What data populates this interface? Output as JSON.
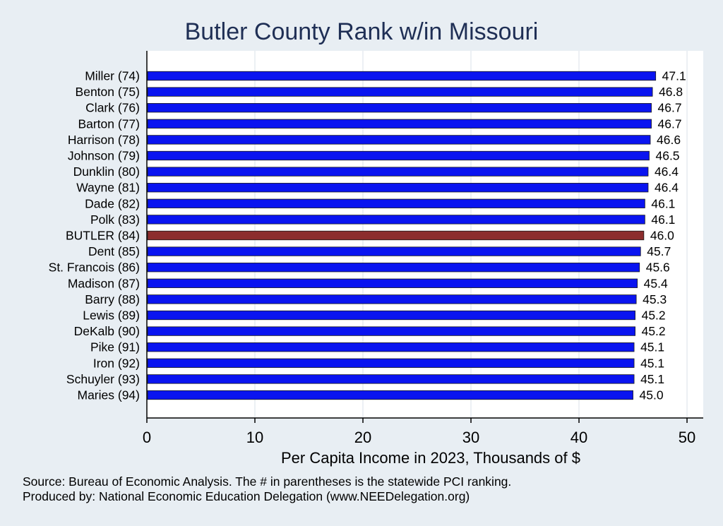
{
  "chart_data": {
    "type": "bar",
    "orientation": "horizontal",
    "title": "Butler County Rank w/in Missouri",
    "xlabel": "Per Capita Income in 2023, Thousands of $",
    "ylabel": "",
    "xlim": [
      0,
      51.5
    ],
    "xticks": [
      "0",
      "10",
      "20",
      "30",
      "40",
      "50"
    ],
    "grid": true,
    "legend": "none",
    "categories": [
      "Miller (74)",
      "Benton (75)",
      "Clark (76)",
      "Barton (77)",
      "Harrison (78)",
      "Johnson (79)",
      "Dunklin (80)",
      "Wayne (81)",
      "Dade (82)",
      "Polk (83)",
      "BUTLER (84)",
      "Dent (85)",
      "St. Francois (86)",
      "Madison (87)",
      "Barry (88)",
      "Lewis (89)",
      "DeKalb (90)",
      "Pike (91)",
      "Iron (92)",
      "Schuyler (93)",
      "Maries (94)"
    ],
    "values": [
      47.1,
      46.8,
      46.7,
      46.7,
      46.6,
      46.5,
      46.4,
      46.4,
      46.1,
      46.1,
      46.0,
      45.7,
      45.6,
      45.4,
      45.3,
      45.2,
      45.2,
      45.1,
      45.1,
      45.1,
      45.0
    ],
    "value_labels": [
      "47.1",
      "46.8",
      "46.7",
      "46.7",
      "46.6",
      "46.5",
      "46.4",
      "46.4",
      "46.1",
      "46.1",
      "46.0",
      "45.7",
      "45.6",
      "45.4",
      "45.3",
      "45.2",
      "45.2",
      "45.1",
      "45.1",
      "45.1",
      "45.0"
    ],
    "highlight_category": "BUTLER (84)",
    "colors": {
      "bar": "#0a14f0",
      "highlight": "#8c2d2d",
      "bar_outline": "#1a1a1a",
      "plot_bg": "#ffffff",
      "page_bg": "#e8eef3",
      "grid": "#e6ebf0",
      "title": "#1f2f55"
    }
  },
  "footer": {
    "source": "Source: Bureau of Economic Analysis. The # in parentheses is the statewide PCI ranking.",
    "produced_by": "Produced by: National Economic Education Delegation (www.NEEDelegation.org)"
  }
}
